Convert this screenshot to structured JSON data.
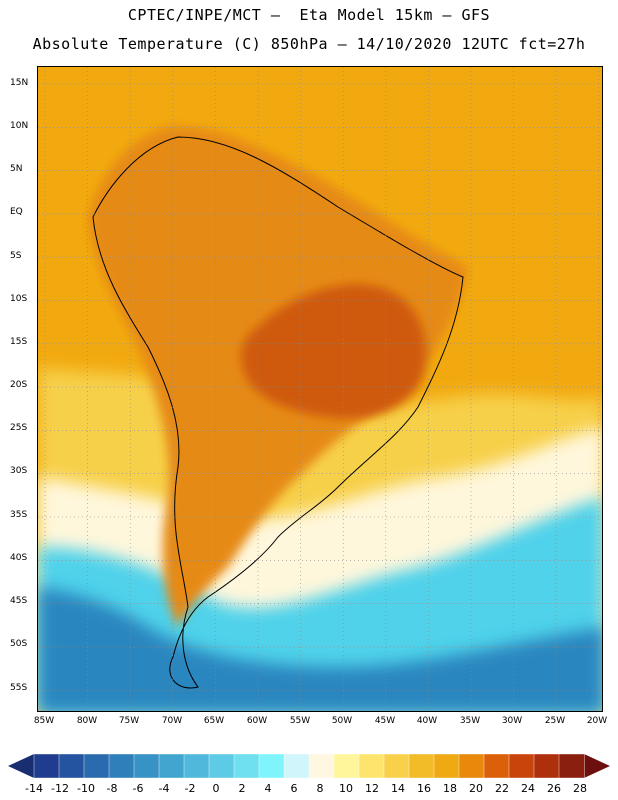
{
  "header": {
    "title_line_1": "CPTEC/INPE/MCT –  Eta Model 15km – GFS",
    "title_line_2": "Absolute Temperature (C) 850hPa – 14/10/2020 12UTC fct=27h"
  },
  "map": {
    "lat_labels": [
      "15N",
      "10N",
      "5N",
      "EQ",
      "5S",
      "10S",
      "15S",
      "20S",
      "25S",
      "30S",
      "35S",
      "40S",
      "45S",
      "50S",
      "55S"
    ],
    "lon_labels": [
      "85W",
      "80W",
      "75W",
      "70W",
      "65W",
      "60W",
      "55W",
      "50W",
      "45W",
      "40W",
      "35W",
      "30W",
      "25W",
      "20W"
    ],
    "temperature_zones": [
      {
        "name": "background-warm",
        "value_c": 18,
        "color": "#f2a90f"
      },
      {
        "name": "north-continent",
        "value_c": 20,
        "color": "#e68a12"
      },
      {
        "name": "central-brazil-core",
        "value_c": 22,
        "color": "#cf5a0c"
      },
      {
        "name": "southeast-atlantic-mild",
        "value_c": 14,
        "color": "#f7d04a"
      },
      {
        "name": "cool-belt",
        "value_c": 6,
        "color": "#fff7dc"
      },
      {
        "name": "cold-ocean",
        "value_c": 0,
        "color": "#4fd2ea"
      },
      {
        "name": "coldest-south",
        "value_c": -6,
        "color": "#2c86bf"
      }
    ]
  },
  "colorbar": {
    "labels": [
      "-14",
      "-12",
      "-10",
      "-8",
      "-6",
      "-4",
      "-2",
      "0",
      "2",
      "4",
      "6",
      "8",
      "10",
      "12",
      "14",
      "16",
      "18",
      "20",
      "22",
      "24",
      "26",
      "28"
    ],
    "colors": [
      "#1f3c8e",
      "#2453a0",
      "#2a6aae",
      "#2f7fbb",
      "#3792c5",
      "#42a5cf",
      "#50b9db",
      "#5ecbe6",
      "#6ee0f0",
      "#7ff5fb",
      "#d0f6fb",
      "#fff7df",
      "#fff59a",
      "#fde56d",
      "#f8d04a",
      "#f2bb28",
      "#efa912",
      "#e8890c",
      "#dc600a",
      "#c9440a",
      "#ae2f0c",
      "#8a1f0f"
    ],
    "left_end_color": "#182e70",
    "right_end_color": "#6e0f0f"
  }
}
